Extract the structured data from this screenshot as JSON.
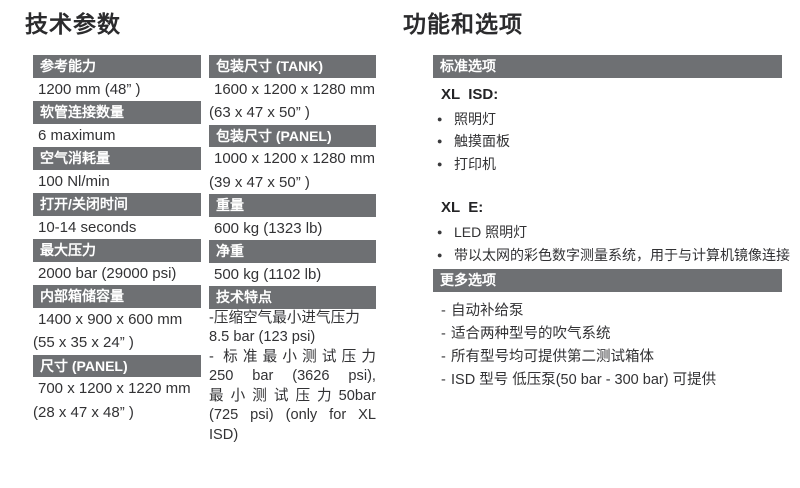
{
  "colors": {
    "page_bg": "#ffffff",
    "bar_bg": "#6e7073",
    "bar_text": "#ffffff",
    "body_text": "#323234",
    "title_text": "#2b2b2d"
  },
  "icons": {
    "bullet": "●",
    "dash": "-"
  },
  "left": {
    "title": "技术参数",
    "col_a": [
      {
        "label": "参考能力",
        "lines": [
          "1200 mm (48” )"
        ]
      },
      {
        "label": "软管连接数量",
        "lines": [
          "6 maximum"
        ]
      },
      {
        "label": "空气消耗量",
        "lines": [
          "100 Nl/min"
        ]
      },
      {
        "label": "打开/关闭时间",
        "lines": [
          "10-14 seconds"
        ]
      },
      {
        "label": "最大压力",
        "lines": [
          "2000 bar (29000 psi)"
        ]
      },
      {
        "label": "内部箱储容量",
        "lines": [
          "1400 x 900 x 600 mm",
          "(55 x 35 x 24” )"
        ]
      },
      {
        "label": "尺寸 (PANEL)",
        "lines": [
          "700 x 1200 x 1220 mm",
          "(28 x 47 x 48” )"
        ]
      }
    ],
    "col_b": [
      {
        "label": "包装尺寸 (TANK)",
        "lines": [
          "1600 x 1200 x 1280 mm",
          "(63 x 47 x 50” )"
        ]
      },
      {
        "label": "包装尺寸 (PANEL)",
        "lines": [
          "1000 x 1200 x 1280 mm",
          "(39 x 47 x 50” )"
        ]
      },
      {
        "label": "重量",
        "lines": [
          "600 kg (1323 lb)"
        ]
      },
      {
        "label": "净重",
        "lines": [
          "500 kg (1102 lb)"
        ]
      },
      {
        "label": "技术特点",
        "tech_lines": [
          "-压缩空气最小进气压力",
          "8.5 bar (123 psi)",
          "- 标准最小测试压力",
          "250 bar (3626 psi),",
          "最小测试压力50bar",
          "(725 psi) (only for XL",
          "ISD)"
        ]
      }
    ]
  },
  "right": {
    "title": "功能和选项",
    "standard": {
      "header": "标准选项",
      "groups": [
        {
          "model": "XL  ISD:",
          "bullets": [
            "照明灯",
            "触摸面板",
            "打印机"
          ]
        },
        {
          "model": "XL  E:",
          "bullets": [
            "LED 照明灯",
            "带以太网的彩色数字测量系统，用于与计算机镜像连接"
          ]
        }
      ]
    },
    "more": {
      "header": "更多选项",
      "items": [
        "自动补给泵",
        "适合两种型号的吹气系统",
        "所有型号均可提供第二测试箱体",
        "ISD 型号 低压泵(50 bar - 300 bar) 可提供"
      ]
    }
  }
}
